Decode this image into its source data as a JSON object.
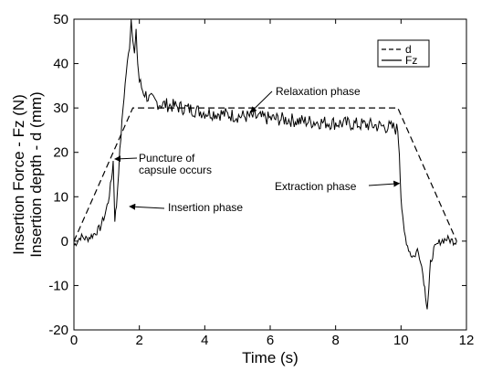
{
  "chart_data": {
    "type": "line",
    "xlabel": "Time (s)",
    "ylabel": [
      "Insertion Force - Fz (N)",
      "Insertion depth - d (mm)"
    ],
    "xlim": [
      0,
      12
    ],
    "ylim": [
      -20,
      50
    ],
    "xticks": [
      0,
      2,
      4,
      6,
      8,
      10,
      12
    ],
    "yticks": [
      -20,
      -10,
      0,
      10,
      20,
      30,
      40,
      50
    ],
    "grid": false,
    "legend_position": "top-right",
    "series": [
      {
        "name": "d",
        "style": "dashed",
        "color": "#000000",
        "x": [
          0.0,
          1.8,
          9.9,
          11.7
        ],
        "y": [
          0.0,
          30.0,
          30.0,
          0.0
        ]
      },
      {
        "name": "Fz",
        "style": "solid",
        "color": "#000000",
        "x": [
          0.0,
          0.2,
          0.4,
          0.6,
          0.8,
          0.95,
          1.05,
          1.15,
          1.2,
          1.25,
          1.3,
          1.4,
          1.5,
          1.6,
          1.7,
          1.75,
          1.8,
          1.85,
          1.9,
          1.95,
          2.0,
          2.1,
          2.3,
          2.6,
          3.0,
          3.5,
          4.0,
          4.5,
          5.0,
          5.5,
          6.0,
          6.5,
          7.0,
          7.5,
          8.0,
          8.5,
          9.0,
          9.5,
          9.8,
          9.9,
          9.95,
          10.0,
          10.05,
          10.1,
          10.2,
          10.3,
          10.4,
          10.5,
          10.6,
          10.7,
          10.75,
          10.8,
          10.85,
          10.9,
          11.0,
          11.1,
          11.2,
          11.4,
          11.6,
          11.7
        ],
        "y": [
          -1.0,
          1.0,
          0.5,
          1.5,
          3.0,
          6.0,
          9.0,
          14.0,
          18.0,
          5.0,
          8.0,
          20.0,
          30.0,
          38.0,
          44.0,
          50.0,
          46.0,
          42.0,
          47.0,
          40.0,
          36.0,
          34.0,
          32.0,
          31.0,
          30.5,
          29.8,
          29.0,
          28.7,
          28.2,
          28.0,
          27.6,
          27.4,
          27.0,
          26.8,
          26.6,
          26.4,
          26.2,
          25.8,
          25.5,
          25.0,
          20.0,
          10.0,
          5.0,
          2.0,
          -1.0,
          -3.0,
          -3.5,
          -2.0,
          -4.0,
          -9.0,
          -12.0,
          -15.0,
          -11.0,
          -5.0,
          -2.0,
          -1.0,
          0.0,
          0.5,
          0.0,
          0.0
        ]
      }
    ],
    "annotations": [
      {
        "lines": [
          "Relaxation phase"
        ],
        "arrow_to": [
          5.4,
          29.0
        ]
      },
      {
        "lines": [
          "Puncture of",
          "capsule occurs"
        ],
        "arrow_to": [
          1.25,
          18.5
        ]
      },
      {
        "lines": [
          "Insertion phase"
        ],
        "arrow_to": [
          1.7,
          7.8
        ]
      },
      {
        "lines": [
          "Extraction phase"
        ],
        "arrow_to": [
          9.95,
          13.0
        ]
      }
    ]
  }
}
